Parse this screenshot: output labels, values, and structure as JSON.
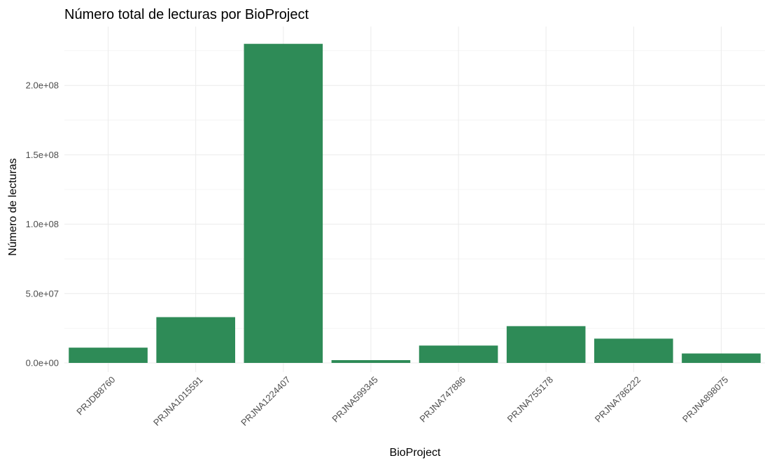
{
  "chart_data": {
    "type": "bar",
    "title": "Número total de lecturas por BioProject",
    "xlabel": "BioProject",
    "ylabel": "Número de lecturas",
    "categories": [
      "PRJDB8760",
      "PRJNA1015591",
      "PRJNA1224407",
      "PRJNA599345",
      "PRJNA747886",
      "PRJNA755178",
      "PRJNA786222",
      "PRJNA898075"
    ],
    "values": [
      11000000,
      33000000,
      230000000,
      2000000,
      12500000,
      26500000,
      17500000,
      6800000
    ],
    "ylim": [
      0,
      240000000
    ],
    "y_ticks": [
      0,
      50000000,
      100000000,
      150000000,
      200000000
    ],
    "y_tick_labels": [
      "0.0e+00",
      "5.0e+07",
      "1.0e+08",
      "1.5e+08",
      "2.0e+08"
    ],
    "bar_color": "#2e8b57",
    "grid": true,
    "legend": "none"
  }
}
